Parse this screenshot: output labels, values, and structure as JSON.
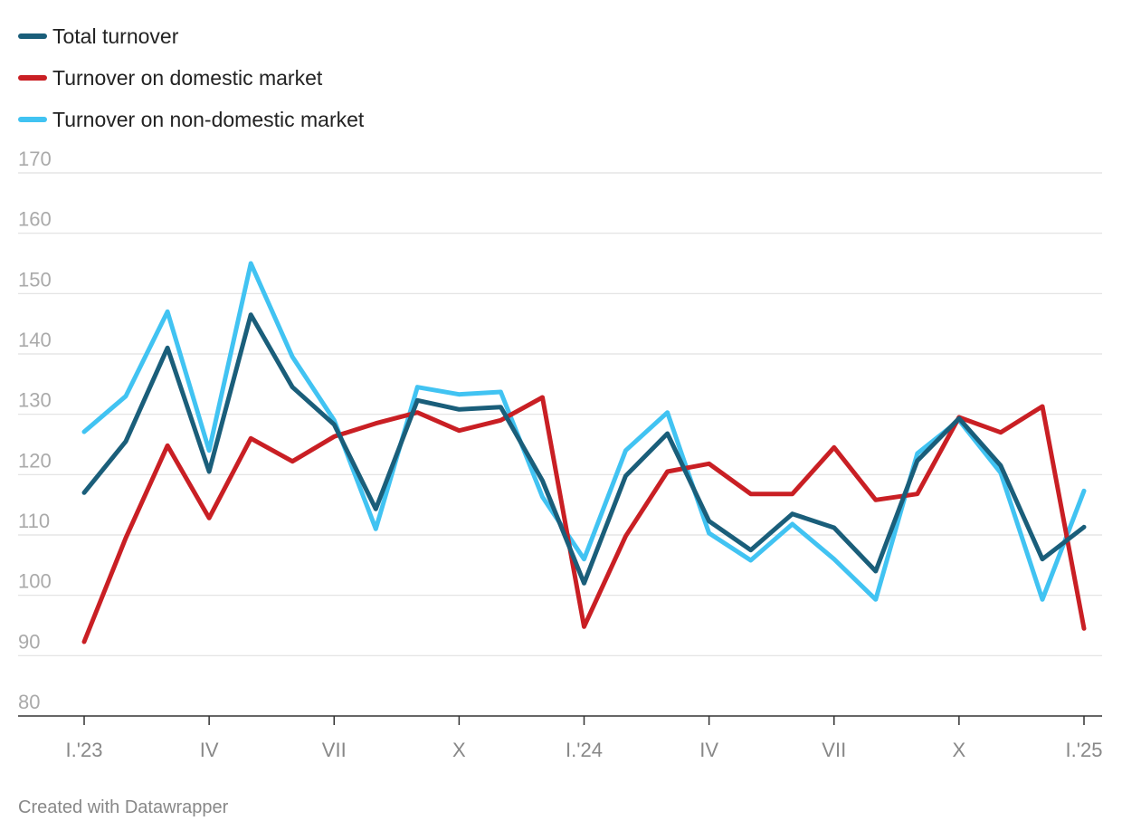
{
  "chart_data": {
    "type": "line",
    "title": "",
    "xlabel": "",
    "ylabel": "",
    "ylim": [
      80,
      170
    ],
    "yticks": [
      80,
      90,
      100,
      110,
      120,
      130,
      140,
      150,
      160,
      170
    ],
    "grid": true,
    "legend_position": "top-left",
    "x_tick_labels": [
      "I.'23",
      "IV",
      "VII",
      "X",
      "I.'24",
      "IV",
      "VII",
      "X",
      "I.'25"
    ],
    "x_tick_indices": [
      0,
      3,
      6,
      9,
      12,
      15,
      18,
      21,
      24
    ],
    "series": [
      {
        "name": "Total turnover",
        "color": "#1a5e7a",
        "values": [
          117,
          125.5,
          141,
          120.5,
          146.5,
          134.5,
          128.3,
          114.3,
          132.3,
          130.8,
          131.2,
          119,
          102,
          119.8,
          126.8,
          112.3,
          107.5,
          113.5,
          111.2,
          104,
          122.3,
          129.3,
          121.5,
          106,
          111.3
        ]
      },
      {
        "name": "Turnover on domestic market",
        "color": "#c91f24",
        "values": [
          92.3,
          109.5,
          124.8,
          112.8,
          126,
          122.2,
          126.3,
          128.5,
          130.3,
          127.3,
          129,
          132.8,
          94.8,
          109.8,
          120.5,
          121.8,
          116.8,
          116.8,
          124.5,
          115.8,
          116.8,
          129.5,
          127,
          131.3,
          94.5
        ]
      },
      {
        "name": "Turnover on non-domestic market",
        "color": "#41c3f2",
        "values": [
          127.1,
          133,
          147,
          124,
          155,
          139.5,
          129,
          111,
          134.5,
          133.3,
          133.7,
          116.3,
          106,
          124,
          130.3,
          110.3,
          105.8,
          111.8,
          106,
          99.3,
          123.5,
          129,
          120.3,
          99.3,
          117.3
        ]
      }
    ]
  },
  "footer": {
    "credit": "Created with Datawrapper"
  }
}
